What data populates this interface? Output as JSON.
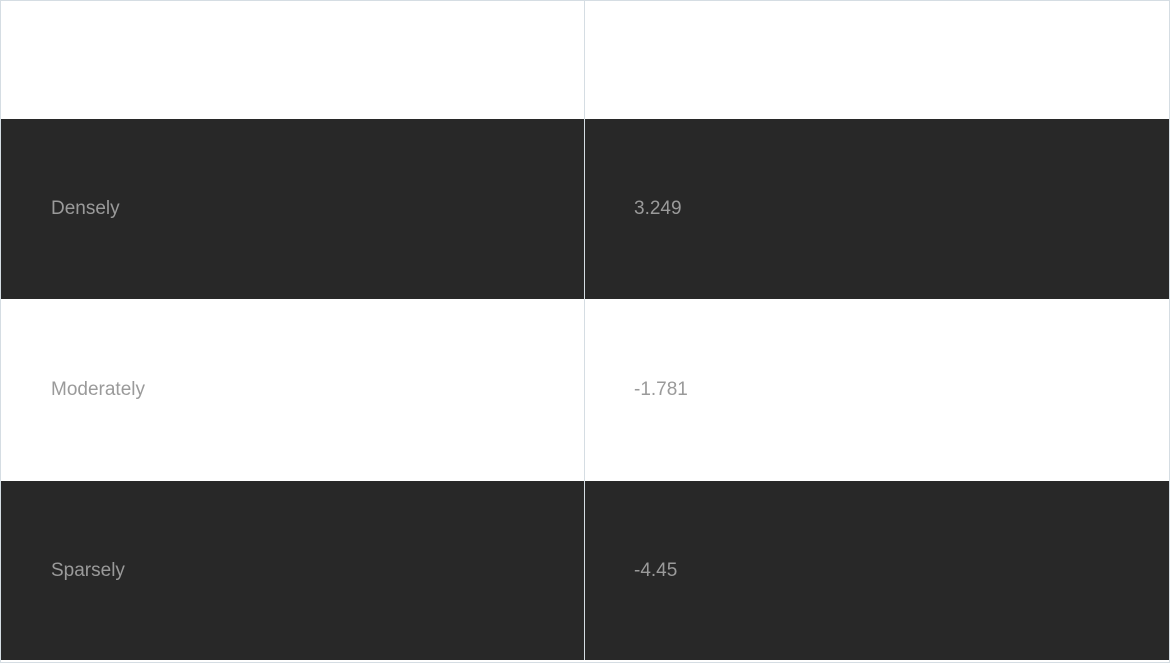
{
  "table": {
    "header": [
      "",
      ""
    ],
    "rows": [
      {
        "label": "Densely",
        "value": "3.249",
        "theme": "dark"
      },
      {
        "label": "Moderately",
        "value": "-1.781",
        "theme": "light"
      },
      {
        "label": "Sparsely",
        "value": "-4.45",
        "theme": "dark"
      }
    ]
  },
  "colors": {
    "dark_row": "#282828",
    "light_row": "#ffffff",
    "text": "#9a9a9a",
    "border": "#d5dde3"
  }
}
